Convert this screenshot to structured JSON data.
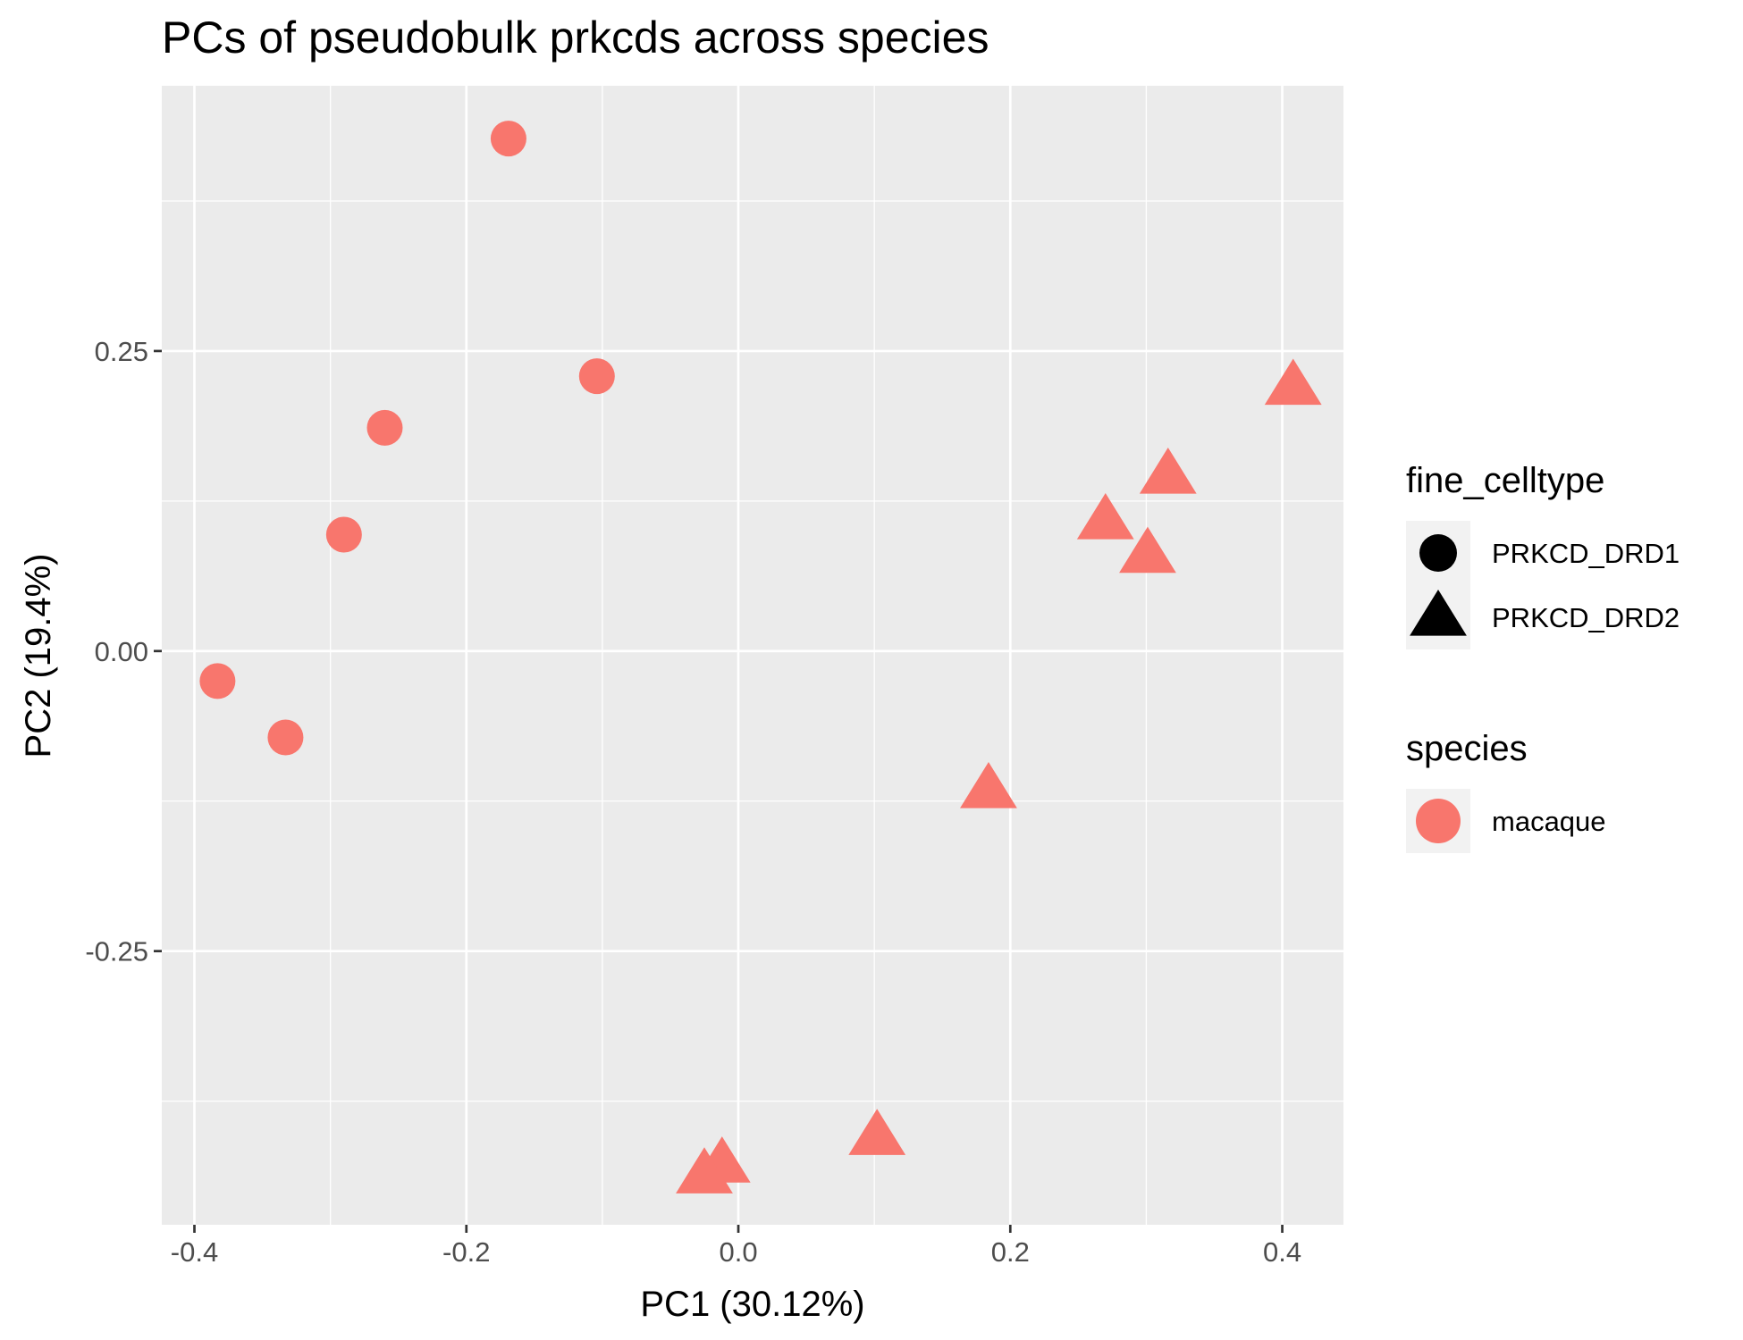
{
  "chart_data": {
    "type": "scatter",
    "title": "PCs of pseudobulk prkcds across species",
    "xlabel": "PC1 (30.12%)",
    "ylabel": "PC2 (19.4%)",
    "xlim": [
      -0.424,
      0.445
    ],
    "ylim": [
      -0.478,
      0.471
    ],
    "x_ticks": [
      -0.4,
      -0.2,
      0.0,
      0.2,
      0.4
    ],
    "x_tick_labels": [
      "-0.4",
      "-0.2",
      "0.0",
      "0.2",
      "0.4"
    ],
    "y_ticks": [
      -0.25,
      0.0,
      0.25
    ],
    "y_tick_labels": [
      "-0.25",
      "0.00",
      "0.25"
    ],
    "grid": true,
    "legend_position": "right",
    "colors": {
      "panel": "#ebebeb",
      "grid": "#ffffff",
      "macaque": "#f8766d",
      "legend_key_bg": "#f2f2f2"
    },
    "legends": [
      {
        "title": "fine_celltype",
        "items": [
          {
            "label": "PRKCD_DRD1",
            "shape": "circle"
          },
          {
            "label": "PRKCD_DRD2",
            "shape": "triangle"
          }
        ]
      },
      {
        "title": "species",
        "items": [
          {
            "label": "macaque",
            "shape": "circle",
            "color": "#f8766d"
          }
        ]
      }
    ],
    "series": [
      {
        "fine_celltype": "PRKCD_DRD1",
        "species": "macaque",
        "shape": "circle",
        "points": [
          {
            "x": -0.169,
            "y": 0.427
          },
          {
            "x": -0.104,
            "y": 0.229
          },
          {
            "x": -0.26,
            "y": 0.186
          },
          {
            "x": -0.29,
            "y": 0.097
          },
          {
            "x": -0.383,
            "y": -0.025
          },
          {
            "x": -0.333,
            "y": -0.072
          }
        ]
      },
      {
        "fine_celltype": "PRKCD_DRD2",
        "species": "macaque",
        "shape": "triangle",
        "points": [
          {
            "x": 0.408,
            "y": 0.222
          },
          {
            "x": 0.316,
            "y": 0.148
          },
          {
            "x": 0.27,
            "y": 0.11
          },
          {
            "x": 0.301,
            "y": 0.082
          },
          {
            "x": 0.184,
            "y": -0.114
          },
          {
            "x": 0.102,
            "y": -0.403
          },
          {
            "x": -0.012,
            "y": -0.426
          },
          {
            "x": -0.025,
            "y": -0.435
          }
        ]
      }
    ]
  }
}
